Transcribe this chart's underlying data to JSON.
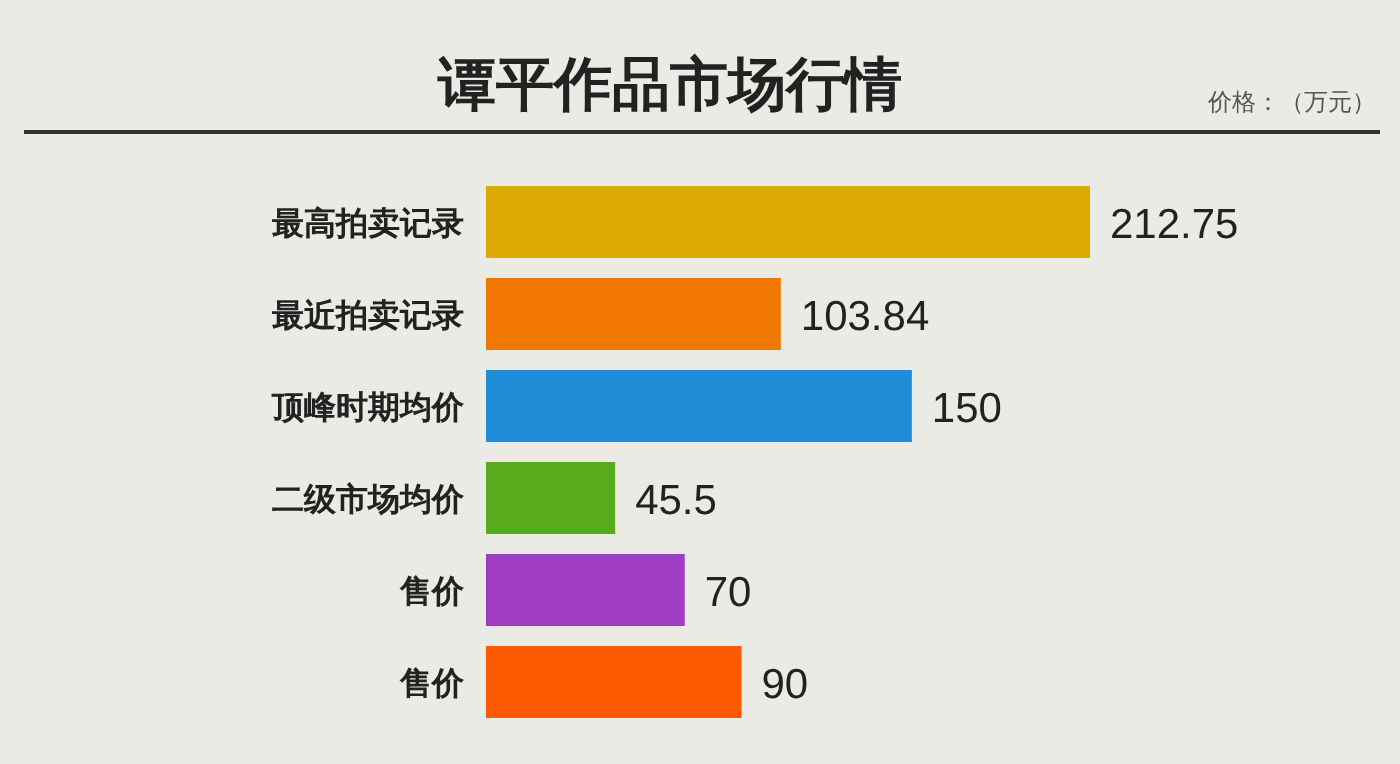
{
  "chart_data": {
    "type": "bar",
    "orientation": "horizontal",
    "title": "谭平作品市场行情",
    "annotations": [
      "价格：（万元）"
    ],
    "categories": [
      "最高拍卖记录",
      "最近拍卖记录",
      "顶峰时期均价",
      "二级市场均价",
      "售价",
      "售价"
    ],
    "values": [
      212.75,
      103.84,
      150,
      45.5,
      70,
      90
    ],
    "colors": [
      "#dcaa00",
      "#f07800",
      "#1e8cd7",
      "#5aaa1e",
      "#a03cc3",
      "#ff5a00"
    ],
    "data_labels": true
  }
}
